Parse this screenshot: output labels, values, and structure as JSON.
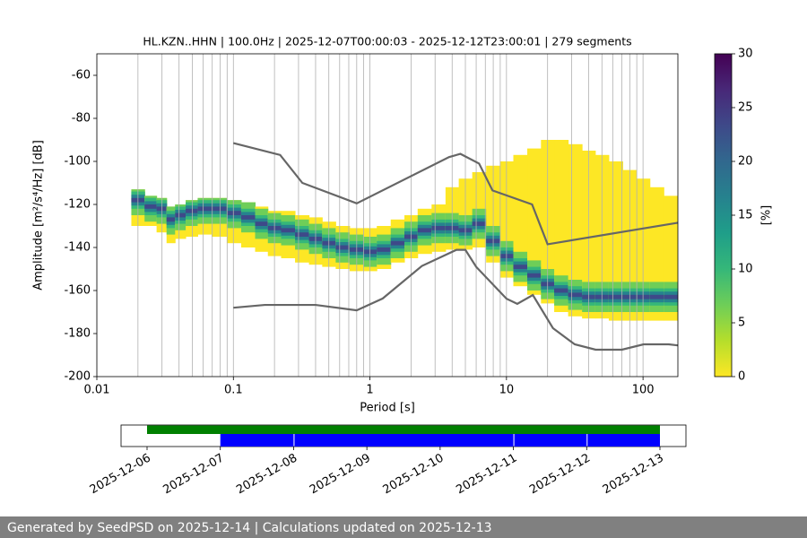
{
  "chart_data": {
    "type": "heatmap",
    "title": "HL.KZN..HHN | 100.0Hz | 2025-12-07T00:00:03 - 2025-12-12T23:00:01 | 279 segments",
    "xlabel": "Period [s]",
    "ylabel": "Amplitude [m²/s⁴/Hz] [dB]",
    "xlog": true,
    "xlim": [
      0.01,
      180
    ],
    "ylim": [
      -200,
      -50
    ],
    "xticks": [
      0.01,
      0.1,
      1,
      10,
      100
    ],
    "yticks": [
      -200,
      -180,
      -160,
      -140,
      -120,
      -100,
      -80,
      -60
    ],
    "xgrid": true,
    "density": {
      "x": [
        0.02,
        0.025,
        0.03,
        0.035,
        0.04,
        0.05,
        0.06,
        0.08,
        0.1,
        0.13,
        0.16,
        0.2,
        0.25,
        0.32,
        0.4,
        0.5,
        0.63,
        0.8,
        1,
        1.26,
        1.6,
        2,
        2.5,
        3.2,
        4,
        5,
        6.3,
        8,
        10,
        12.6,
        16,
        20,
        25,
        32,
        40,
        50,
        63,
        80,
        100,
        126,
        160
      ],
      "mode": [
        -118,
        -121,
        -122,
        -127,
        -125,
        -123,
        -122,
        -122,
        -124,
        -126,
        -129,
        -131,
        -132,
        -134,
        -136,
        -138,
        -140,
        -141,
        -142,
        -141,
        -138,
        -135,
        -132,
        -131,
        -131,
        -132,
        -129,
        -137,
        -144,
        -149,
        -153,
        -157,
        -160,
        -162,
        -163,
        -163,
        -163,
        -163,
        -163,
        -163,
        -163
      ],
      "low": [
        -130,
        -130,
        -133,
        -138,
        -136,
        -135,
        -134,
        -135,
        -138,
        -140,
        -142,
        -144,
        -145,
        -147,
        -148,
        -149,
        -150,
        -151,
        -151,
        -150,
        -147,
        -145,
        -143,
        -142,
        -141,
        -141,
        -140,
        -147,
        -154,
        -158,
        -162,
        -166,
        -170,
        -172,
        -173,
        -173,
        -174,
        -174,
        -174,
        -174,
        -174
      ],
      "high": [
        -113,
        -116,
        -117,
        -121,
        -120,
        -118,
        -117,
        -117,
        -118,
        -119,
        -121,
        -123,
        -123,
        -125,
        -126,
        -128,
        -130,
        -131,
        -131,
        -130,
        -127,
        -125,
        -122,
        -120,
        -112,
        -108,
        -105,
        -102,
        -100,
        -97,
        -94,
        -90,
        -90,
        -92,
        -95,
        -97,
        -100,
        -104,
        -108,
        -112,
        -116
      ]
    },
    "colormap": [
      "#fde725",
      "#b5de2b",
      "#6ece58",
      "#35b779",
      "#1f9e89",
      "#26828e",
      "#31688e",
      "#3e4989",
      "#482878",
      "#440154"
    ],
    "noise_models": [
      {
        "color": "#666666",
        "x": [
          0.1,
          0.22,
          0.32,
          0.8,
          3.8,
          4.6,
          6.3,
          7.9,
          15.4,
          20,
          180
        ],
        "values": [
          -91.5,
          -97,
          -110,
          -119.5,
          -98,
          -96.5,
          -101,
          -113.5,
          -120,
          -138.5,
          -128.5
        ]
      },
      {
        "color": "#666666",
        "x": [
          0.1,
          0.17,
          0.4,
          0.8,
          1.24,
          2.4,
          4.3,
          5,
          6,
          10,
          12,
          15.6,
          21.9,
          31.6,
          45,
          70,
          101,
          154,
          180
        ],
        "values": [
          -168,
          -166.7,
          -166.7,
          -169.2,
          -163.7,
          -148.6,
          -141.1,
          -141.1,
          -149,
          -163.8,
          -166.2,
          -162.1,
          -177.5,
          -185,
          -187.5,
          -187.5,
          -185,
          -185,
          -185.5
        ]
      }
    ],
    "colorbar": {
      "label": "[%]",
      "lim": [
        0,
        30
      ],
      "ticks": [
        0,
        5,
        10,
        15,
        20,
        25,
        30
      ]
    },
    "timeline": {
      "ticks": [
        "2025-12-06",
        "2025-12-07",
        "2025-12-08",
        "2025-12-09",
        "2025-12-10",
        "2025-12-11",
        "2025-12-12",
        "2025-12-13"
      ],
      "data_coverage": {
        "color": "#008000",
        "spans": [
          [
            "2025-12-06",
            "2025-12-13"
          ]
        ]
      },
      "psd_coverage": {
        "color": "#0000ff",
        "spans": [
          [
            "2025-12-07",
            "2025-12-08"
          ],
          [
            "2025-12-08",
            "2025-12-11"
          ],
          [
            "2025-12-11",
            "2025-12-12"
          ],
          [
            "2025-12-12",
            "2025-12-13"
          ]
        ]
      }
    },
    "footer": "Generated by SeedPSD on 2025-12-14 | Calculations updated on 2025-12-13"
  }
}
